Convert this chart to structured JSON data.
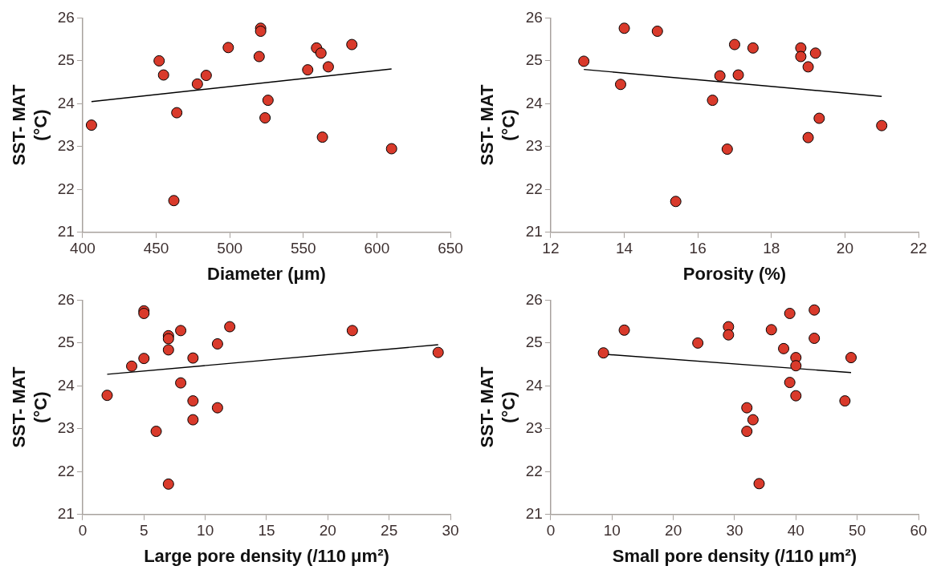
{
  "chart_data": [
    {
      "type": "scatter",
      "xlabel": "Diameter (μm)",
      "ylabel": "SST- MAT (°C)",
      "xlim": [
        400,
        650
      ],
      "xticks": [
        400,
        450,
        500,
        550,
        600,
        650
      ],
      "ylim": [
        21,
        26
      ],
      "yticks": [
        21,
        22,
        23,
        24,
        25,
        26
      ],
      "series": [
        {
          "color": "#d93a2b",
          "marker": "circle",
          "x": [
            406,
            452,
            455,
            464,
            462,
            478,
            484,
            499,
            521,
            521,
            520,
            526,
            524,
            553,
            559,
            562,
            567,
            563,
            583,
            610
          ],
          "values": [
            23.5,
            25.0,
            24.67,
            23.79,
            21.74,
            24.46,
            24.66,
            25.31,
            25.76,
            25.69,
            25.1,
            24.08,
            23.67,
            24.79,
            25.3,
            25.18,
            24.86,
            23.22,
            25.38,
            22.95
          ]
        },
        {
          "type": "line",
          "marker": "none",
          "color": "#000000",
          "x": [
            406,
            610
          ],
          "values": [
            24.05,
            24.81
          ]
        }
      ]
    },
    {
      "type": "scatter",
      "xlabel": "Porosity (%)",
      "ylabel": "SST- MAT (°C)",
      "xlim": [
        12,
        22
      ],
      "xticks": [
        12,
        14,
        16,
        18,
        20,
        22
      ],
      "ylim": [
        21,
        26
      ],
      "yticks": [
        21,
        22,
        23,
        24,
        25,
        26
      ],
      "series": [
        {
          "color": "#d93a2b",
          "marker": "circle",
          "x": [
            12.9,
            13.9,
            14.0,
            14.9,
            15.4,
            16.4,
            16.6,
            16.8,
            17.0,
            17.1,
            17.5,
            18.8,
            18.8,
            19.0,
            19.2,
            19.0,
            19.3,
            21.0
          ],
          "values": [
            24.99,
            24.45,
            25.76,
            25.69,
            21.72,
            24.08,
            24.65,
            22.94,
            25.38,
            24.67,
            25.3,
            25.3,
            25.1,
            24.86,
            25.18,
            23.21,
            23.66,
            23.49
          ]
        },
        {
          "type": "line",
          "marker": "none",
          "color": "#000000",
          "x": [
            12.9,
            21.0
          ],
          "values": [
            24.8,
            24.17
          ]
        }
      ]
    },
    {
      "type": "scatter",
      "xlabel": "Large pore density (/110 μm²)",
      "ylabel": "SST- MAT (°C)",
      "xlim": [
        0,
        30
      ],
      "xticks": [
        0,
        5,
        10,
        15,
        20,
        25,
        30
      ],
      "ylim": [
        21,
        26
      ],
      "yticks": [
        21,
        22,
        23,
        24,
        25,
        26
      ],
      "series": [
        {
          "color": "#d93a2b",
          "marker": "circle",
          "x": [
            2,
            4,
            5,
            5,
            5,
            6,
            7,
            7,
            7,
            7,
            8,
            8,
            9,
            9,
            9,
            11,
            11,
            12,
            22,
            29
          ],
          "values": [
            23.78,
            24.46,
            24.64,
            25.75,
            25.69,
            22.94,
            25.17,
            25.1,
            24.84,
            21.71,
            25.29,
            24.07,
            24.65,
            23.65,
            23.21,
            24.98,
            23.49,
            25.38,
            25.29,
            24.78
          ]
        },
        {
          "type": "line",
          "marker": "none",
          "color": "#000000",
          "x": [
            2,
            29
          ],
          "values": [
            24.27,
            24.96
          ]
        }
      ]
    },
    {
      "type": "scatter",
      "xlabel": "Small pore density (/110 μm²)",
      "ylabel": "SST- MAT (°C)",
      "xlim": [
        0,
        60
      ],
      "xticks": [
        0,
        10,
        20,
        30,
        40,
        50,
        60
      ],
      "ylim": [
        21,
        26
      ],
      "yticks": [
        21,
        22,
        23,
        24,
        25,
        26
      ],
      "series": [
        {
          "color": "#d93a2b",
          "marker": "circle",
          "x": [
            8.6,
            12,
            24,
            29,
            29,
            32,
            32,
            33,
            34,
            36,
            38,
            39,
            39,
            40,
            40,
            40,
            43,
            43,
            48,
            49
          ],
          "values": [
            24.77,
            25.3,
            25.0,
            25.38,
            25.19,
            23.49,
            22.94,
            23.21,
            21.72,
            25.31,
            24.87,
            25.69,
            24.08,
            24.66,
            24.47,
            23.77,
            25.77,
            25.11,
            23.65,
            24.66
          ]
        },
        {
          "type": "line",
          "marker": "none",
          "color": "#000000",
          "x": [
            8.6,
            49
          ],
          "values": [
            24.74,
            24.31
          ]
        }
      ]
    }
  ]
}
